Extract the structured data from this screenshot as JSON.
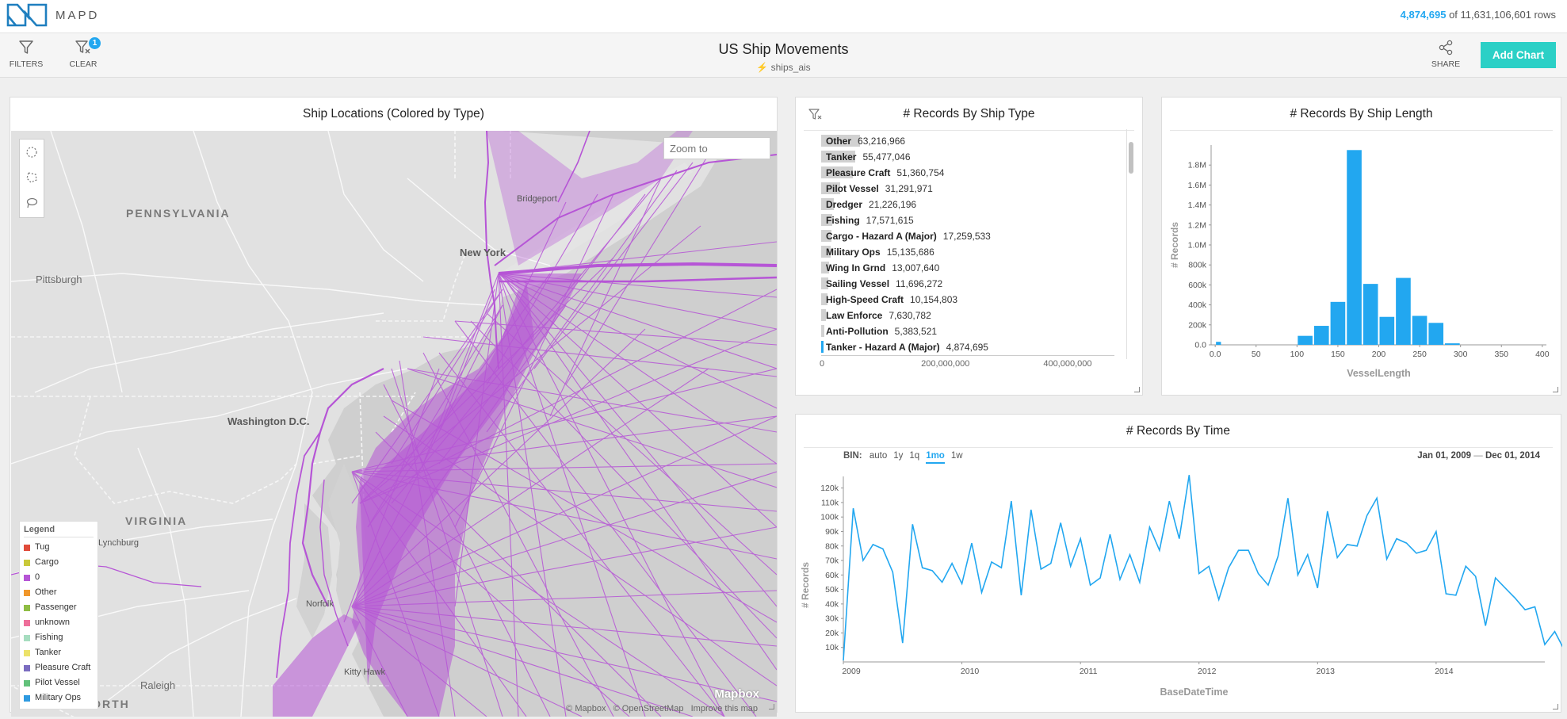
{
  "app": {
    "logo_text": "MAPD",
    "rows_filtered": "4,874,695",
    "rows_total_text": " of 11,631,106,601 rows"
  },
  "toolbar": {
    "filters_label": "FILTERS",
    "clear_label": "CLEAR",
    "clear_badge": "1",
    "title": "US Ship Movements",
    "source": "ships_ais",
    "share_label": "SHARE",
    "add_chart_label": "Add Chart"
  },
  "colors": {
    "accent": "#22a7f0",
    "add_chart": "#2bd0c6",
    "ship_tracks": "#b655d6"
  },
  "map": {
    "title": "Ship Locations (Colored by Type)",
    "zoom_placeholder": "Zoom to",
    "labels": {
      "pennsylvania": "PENNSYLVANIA",
      "pittsburgh": "Pittsburgh",
      "bridgeport": "Bridgeport",
      "new_york": "New York",
      "washington": "Washington D.C.",
      "virginia": "VIRGINIA",
      "lynchburg": "Lynchburg",
      "norfolk": "Norfolk",
      "kitty_hawk": "Kitty Hawk",
      "raleigh": "Raleigh",
      "north": "NORTH"
    },
    "legend": {
      "title": "Legend",
      "items": [
        {
          "label": "Tug",
          "color": "#e04b3a"
        },
        {
          "label": "Cargo",
          "color": "#c9c93a"
        },
        {
          "label": "0",
          "color": "#b655d6"
        },
        {
          "label": "Other",
          "color": "#f0972b"
        },
        {
          "label": "Passenger",
          "color": "#8fbd44"
        },
        {
          "label": "unknown",
          "color": "#ee6f9a"
        },
        {
          "label": "Fishing",
          "color": "#a6ddc0"
        },
        {
          "label": "Tanker",
          "color": "#ece26a"
        },
        {
          "label": "Pleasure Craft",
          "color": "#7b6cc0"
        },
        {
          "label": "Pilot Vessel",
          "color": "#62c17a"
        },
        {
          "label": "Military Ops",
          "color": "#2e9ae0"
        }
      ]
    },
    "mapbox_logo": "Mapbox",
    "attribution": {
      "mapbox": "© Mapbox",
      "osm": "© OpenStreetMap",
      "improve": "Improve this map"
    }
  },
  "chart_data": [
    {
      "type": "bar",
      "orientation": "horizontal",
      "title": "# Records By Ship Type",
      "categories": [
        "Other",
        "Tanker",
        "Pleasure Craft",
        "Pilot Vessel",
        "Dredger",
        "Fishing",
        "Cargo - Hazard A (Major)",
        "Military Ops",
        "Wing In Grnd",
        "Sailing Vessel",
        "High-Speed Craft",
        "Law Enforce",
        "Anti-Pollution",
        "Tanker - Hazard A (Major)"
      ],
      "value_labels": [
        "63,216,966",
        "55,477,046",
        "51,360,754",
        "31,291,971",
        "21,226,196",
        "17,571,615",
        "17,259,533",
        "15,135,686",
        "13,007,640",
        "11,696,272",
        "10,154,803",
        "7,630,782",
        "5,383,521",
        "4,874,695"
      ],
      "values": [
        63216966,
        55477046,
        51360754,
        31291971,
        21226196,
        17571615,
        17259533,
        15135686,
        13007640,
        11696272,
        10154803,
        7630782,
        5383521,
        4874695
      ],
      "selected": "Tanker - Hazard A (Major)",
      "x_ticks": [
        "0",
        "200,000,000",
        "400,000,000"
      ],
      "xlim": [
        0,
        480000000
      ]
    },
    {
      "type": "bar",
      "title": "# Records By Ship Length",
      "xlabel": "VesselLength",
      "ylabel": "# Records",
      "x": [
        0,
        100,
        120,
        140,
        160,
        180,
        200,
        220,
        240,
        260,
        280
      ],
      "values": [
        30000,
        90000,
        190000,
        430000,
        1950000,
        610000,
        280000,
        670000,
        290000,
        220000,
        15000
      ],
      "bin_width": 20,
      "xlim": [
        -5,
        405
      ],
      "ylim": [
        0,
        2000000
      ],
      "x_ticks": [
        "0.0",
        "50",
        "100",
        "150",
        "200",
        "250",
        "300",
        "350",
        "400"
      ],
      "y_ticks": [
        "0.0",
        "200k",
        "400k",
        "600k",
        "800k",
        "1.0M",
        "1.2M",
        "1.4M",
        "1.6M",
        "1.8M"
      ]
    },
    {
      "type": "line",
      "title": "# Records By Time",
      "xlabel": "BaseDateTime",
      "ylabel": "# Records",
      "bin_label": "BIN:",
      "bin_options": [
        "auto",
        "1y",
        "1q",
        "1mo",
        "1w"
      ],
      "bin_selected": "1mo",
      "date_from": "Jan 01, 2009",
      "date_to": "Dec 01, 2014",
      "x_ticks": [
        "2009",
        "2010",
        "2011",
        "2012",
        "2013",
        "2014"
      ],
      "y_ticks": [
        "10k",
        "20k",
        "30k",
        "40k",
        "50k",
        "60k",
        "70k",
        "80k",
        "90k",
        "100k",
        "110k",
        "120k"
      ],
      "ylim": [
        0,
        128000
      ],
      "values": [
        1000,
        106000,
        70000,
        81000,
        78000,
        62000,
        13000,
        95000,
        65000,
        63000,
        55000,
        68000,
        54000,
        82000,
        48000,
        69000,
        65000,
        111000,
        46000,
        105000,
        64000,
        68000,
        96000,
        66000,
        85000,
        53000,
        58000,
        88000,
        57000,
        74000,
        55000,
        93000,
        77000,
        111000,
        85000,
        129000,
        61000,
        66000,
        43000,
        65000,
        77000,
        77000,
        61000,
        53000,
        73000,
        113000,
        60000,
        74000,
        51000,
        104000,
        72000,
        81000,
        80000,
        101000,
        113000,
        71000,
        85000,
        82000,
        75000,
        77000,
        90000,
        47000,
        46000,
        66000,
        59000,
        25000,
        58000,
        51000,
        44000,
        36000,
        38000,
        12000,
        21000,
        8000,
        26000
      ]
    }
  ]
}
